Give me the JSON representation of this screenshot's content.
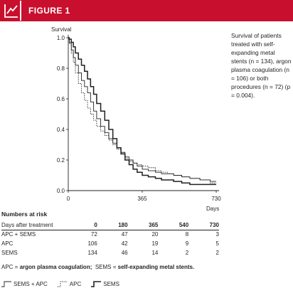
{
  "header": {
    "title": "FIGURE 1",
    "icon": "chart-line-icon",
    "color": "#c8102e"
  },
  "caption": "Survival of patients treated with self-expanding metal stents (n = 134), argon plasma coagulation (n = 106) or both procedures (n = 72) (p = 0.004).",
  "chart_data": {
    "type": "line",
    "subtype": "kaplan-meier-survival",
    "ylabel": "Survival",
    "xlabel": "Days",
    "xlim": [
      0,
      730
    ],
    "ylim": [
      0,
      1.0
    ],
    "x_ticks": [
      "0",
      "365",
      "730"
    ],
    "y_ticks": [
      "0.0",
      "0.2",
      "0.4",
      "0.6",
      "0.8",
      "1.0"
    ],
    "grid": false,
    "series": [
      {
        "name": "SEMS + APC",
        "style": "solid-thin",
        "color": "#231f20",
        "x": [
          0,
          5,
          15,
          25,
          35,
          50,
          65,
          80,
          95,
          110,
          125,
          140,
          160,
          180,
          200,
          220,
          240,
          260,
          280,
          300,
          320,
          340,
          365,
          395,
          430,
          460,
          490,
          520,
          560,
          600,
          650,
          700,
          730
        ],
        "y": [
          1.0,
          0.97,
          0.92,
          0.87,
          0.82,
          0.77,
          0.72,
          0.68,
          0.64,
          0.58,
          0.52,
          0.47,
          0.42,
          0.38,
          0.34,
          0.31,
          0.28,
          0.25,
          0.22,
          0.2,
          0.18,
          0.16,
          0.14,
          0.13,
          0.12,
          0.11,
          0.11,
          0.1,
          0.09,
          0.08,
          0.07,
          0.06,
          0.06
        ]
      },
      {
        "name": "APC",
        "style": "dotted",
        "color": "#231f20",
        "x": [
          0,
          5,
          15,
          25,
          35,
          50,
          65,
          80,
          95,
          110,
          125,
          140,
          160,
          180,
          200,
          220,
          240,
          260,
          280,
          300,
          320,
          340,
          365,
          395,
          430,
          460,
          490,
          520,
          560,
          600,
          650,
          700,
          730
        ],
        "y": [
          1.0,
          0.96,
          0.9,
          0.84,
          0.77,
          0.7,
          0.64,
          0.59,
          0.54,
          0.5,
          0.46,
          0.42,
          0.39,
          0.36,
          0.33,
          0.3,
          0.27,
          0.24,
          0.21,
          0.19,
          0.18,
          0.17,
          0.16,
          0.15,
          0.13,
          0.12,
          0.11,
          0.1,
          0.09,
          0.08,
          0.07,
          0.05,
          0.05
        ]
      },
      {
        "name": "SEMS",
        "style": "solid-thick",
        "color": "#231f20",
        "x": [
          0,
          5,
          15,
          25,
          35,
          50,
          65,
          80,
          95,
          110,
          125,
          140,
          160,
          180,
          200,
          220,
          240,
          260,
          280,
          300,
          320,
          340,
          365,
          395,
          430,
          460,
          490,
          520,
          560,
          600,
          650,
          700,
          730
        ],
        "y": [
          1.0,
          0.99,
          0.97,
          0.94,
          0.9,
          0.86,
          0.82,
          0.78,
          0.73,
          0.68,
          0.63,
          0.57,
          0.52,
          0.46,
          0.4,
          0.34,
          0.28,
          0.24,
          0.2,
          0.17,
          0.14,
          0.12,
          0.1,
          0.09,
          0.08,
          0.07,
          0.07,
          0.06,
          0.05,
          0.04,
          0.04,
          0.04,
          0.04
        ]
      }
    ]
  },
  "risk_table": {
    "title": "Numbers at risk",
    "header_label": "Days after treatment",
    "columns": [
      "0",
      "180",
      "365",
      "540",
      "730"
    ],
    "rows": [
      {
        "label": "APC + SEMS",
        "values": [
          "72",
          "47",
          "20",
          "8",
          "3"
        ]
      },
      {
        "label": "APC",
        "values": [
          "106",
          "42",
          "19",
          "9",
          "5"
        ]
      },
      {
        "label": "SEMS",
        "values": [
          "134",
          "46",
          "14",
          "2",
          "2"
        ]
      }
    ]
  },
  "abbreviations": {
    "apc_abbr": "APC",
    "apc_sep": " = ",
    "apc_text": "argon plasma coagulation;",
    "sems_abbr": "SEMS",
    "sems_sep": " = ",
    "sems_text": "self-expanding metal stents."
  },
  "legend": [
    {
      "label": "SEMS + APC",
      "style": "solid-thin"
    },
    {
      "label": "APC",
      "style": "dotted"
    },
    {
      "label": "SEMS",
      "style": "solid-thick"
    }
  ]
}
